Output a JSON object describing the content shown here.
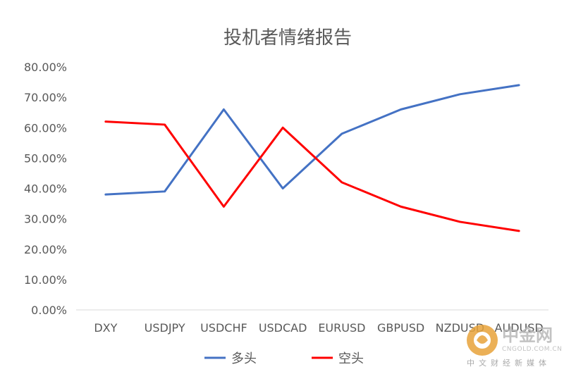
{
  "chart_data": {
    "type": "line",
    "title": "投机者情绪报告",
    "categories": [
      "DXY",
      "USDJPY",
      "USDCHF",
      "USDCAD",
      "EURUSD",
      "GBPUSD",
      "NZDUSD",
      "AUDUSD"
    ],
    "series": [
      {
        "name": "多头",
        "color": "#4472C4",
        "values": [
          38,
          39,
          66,
          40,
          58,
          66,
          71,
          74
        ]
      },
      {
        "name": "空头",
        "color": "#FF0000",
        "values": [
          62,
          61,
          34,
          60,
          42,
          34,
          29,
          26
        ]
      }
    ],
    "yticks": [
      "0.00%",
      "10.00%",
      "20.00%",
      "30.00%",
      "40.00%",
      "50.00%",
      "60.00%",
      "70.00%",
      "80.00%"
    ],
    "ylim": [
      0,
      80
    ],
    "grid": false,
    "legend_position": "bottom"
  },
  "watermark": {
    "brand": "中金网",
    "site": "CNGOLD.COM.CN",
    "tagline": "中文财经新媒体",
    "logo_color": "#e8a33a"
  }
}
